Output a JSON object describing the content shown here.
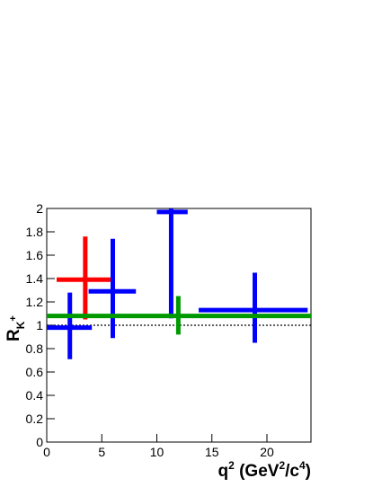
{
  "chart_data": {
    "type": "errorbar",
    "x_label": [
      "q",
      "2",
      " (GeV",
      "2",
      "/c",
      "4",
      ")"
    ],
    "y_label": [
      "R",
      "K",
      "+"
    ],
    "xlim": [
      0,
      24
    ],
    "ylim": [
      0,
      2
    ],
    "xticks": [
      0,
      5,
      10,
      15,
      20
    ],
    "yticks": [
      0,
      0.2,
      0.4,
      0.6,
      0.8,
      1,
      1.2,
      1.4,
      1.6,
      1.8,
      2
    ],
    "reference_line": 1,
    "series": [
      {
        "color": "#ff0000",
        "x": [
          3.5
        ],
        "x_low": [
          0.9
        ],
        "x_high": [
          6.1
        ],
        "values": [
          1.39
        ],
        "y_low": [
          1.05
        ],
        "y_high": [
          1.76
        ]
      },
      {
        "color": "#0000ff",
        "x": [
          2.1,
          6.0,
          11.3,
          18.9
        ],
        "x_low": [
          0.05,
          3.8,
          10.0,
          13.8
        ],
        "x_high": [
          4.1,
          8.1,
          12.8,
          23.7
        ],
        "values": [
          0.98,
          1.29,
          1.97,
          1.13
        ],
        "y_low": [
          0.71,
          0.89,
          1.06,
          0.85
        ],
        "y_high": [
          1.28,
          1.74,
          2.0,
          1.45
        ]
      },
      {
        "color": "#009900",
        "x": [
          11.95
        ],
        "x_low": [
          0
        ],
        "x_high": [
          24
        ],
        "values": [
          1.08
        ],
        "y_low": [
          0.92
        ],
        "y_high": [
          1.25
        ]
      }
    ]
  }
}
